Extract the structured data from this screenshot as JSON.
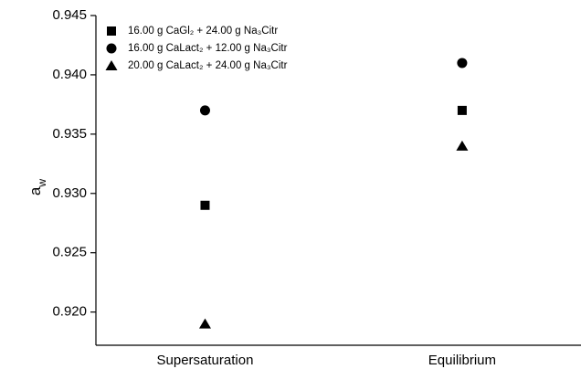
{
  "chart_data": {
    "type": "scatter",
    "y_label": "a",
    "y_label_sub": "w",
    "categories": [
      "Supersaturation",
      "Equilibrium"
    ],
    "series": [
      {
        "name": "16.00 g CaGl₂ + 24.00 g Na₃Citr",
        "color": "#000000",
        "marker": "square",
        "values": [
          0.929,
          0.937
        ]
      },
      {
        "name": "16.00 g CaLact₂ + 12.00 g Na₃Citr",
        "color": "#000000",
        "marker": "circle",
        "values": [
          0.937,
          0.941
        ]
      },
      {
        "name": "20.00 g CaLact₂ + 24.00 g Na₃Citr",
        "color": "#000000",
        "marker": "triangle",
        "values": [
          0.919,
          0.934
        ]
      }
    ],
    "ylim": [
      0.9172,
      0.945
    ],
    "yticks": [
      {
        "value": 0.92,
        "label": "0.920"
      },
      0.925,
      {
        "value": 0.93,
        "label": "0.930"
      },
      0.935,
      {
        "value": 0.94,
        "label": "0.940"
      },
      0.945
    ],
    "legend": "upper-left"
  }
}
